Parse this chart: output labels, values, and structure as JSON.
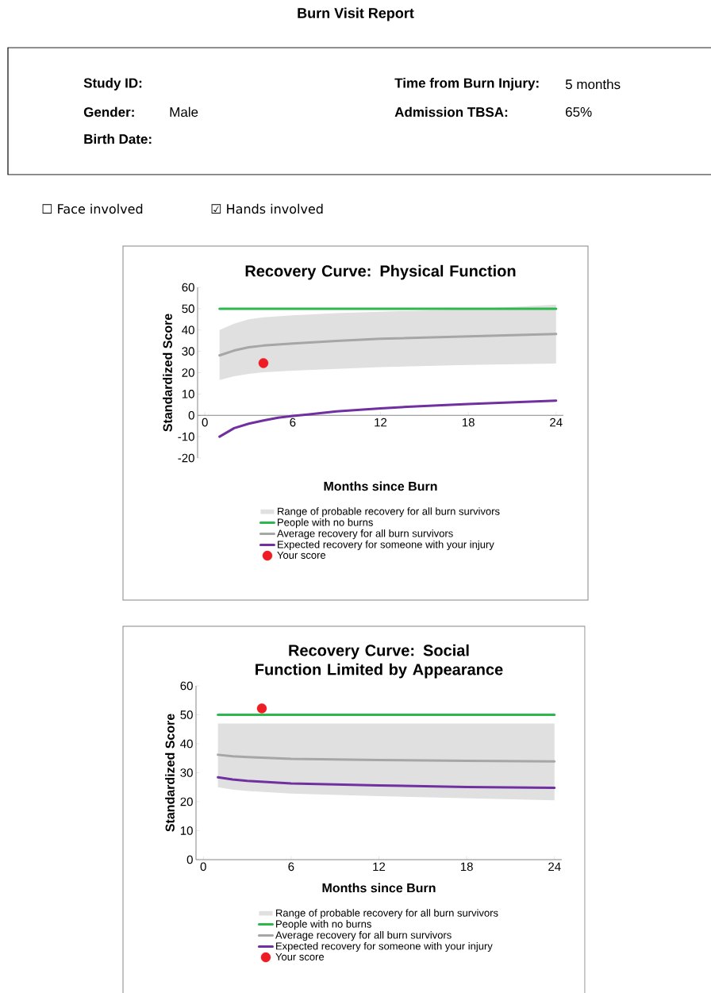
{
  "chart_data": [
    {
      "type": "other",
      "title": "Burn Visit Report",
      "annotations": [
        "Study ID:",
        "Gender:",
        "Male",
        "Birth Date:",
        "Time from Burn Injury:",
        "5 months",
        "Admission TBSA:",
        "65%",
        "☐ Face involved",
        "☑ Hands involved"
      ]
    },
    {
      "type": "line",
      "title": "Recovery Curve: Physical Function",
      "xlabel": "Months since Burn",
      "ylabel": "Standardized Score",
      "xlim": [
        -0.5,
        24.5
      ],
      "xticks": [
        0,
        6,
        12,
        18,
        24
      ],
      "ylim": [
        -20,
        60
      ],
      "yticks": [
        -20,
        -10,
        0,
        10,
        20,
        30,
        40,
        50,
        60
      ],
      "legend": "bottom",
      "annotations": [
        "Range of probable recovery for all burn survivors"
      ],
      "series": [
        {
          "name": "People with no burns",
          "type": "line",
          "color": "#2db84d",
          "x": [
            1,
            24
          ],
          "values": [
            50,
            50
          ]
        },
        {
          "name": "Average recovery for all burn survivors",
          "type": "line",
          "color": "#a6a6a6",
          "x": [
            1,
            2,
            3,
            4,
            6,
            9,
            12,
            18,
            24
          ],
          "values": [
            28.1,
            30.4,
            31.9,
            32.7,
            33.7,
            34.9,
            35.9,
            37,
            38.1
          ],
          "lower": [
            16.6,
            18.3,
            19.4,
            20.2,
            20.9,
            21.8,
            22.6,
            23.6,
            24.3
          ],
          "upper": [
            40,
            43,
            45,
            46,
            46.9,
            47.9,
            48.6,
            49.7,
            51.9
          ]
        },
        {
          "name": "Expected recovery for someone with your injury",
          "type": "line",
          "color": "#7030a0",
          "x": [
            1,
            2,
            3,
            4,
            5,
            6,
            7,
            9,
            12,
            15,
            18,
            21,
            24
          ],
          "values": [
            -10,
            -6,
            -3.9,
            -2.4,
            -1.1,
            -0.3,
            0.4,
            1.9,
            3.3,
            4.4,
            5.3,
            6.1,
            6.9
          ]
        },
        {
          "name": "Your score",
          "type": "scatter",
          "color": "#ee1c24",
          "x": [
            4
          ],
          "values": [
            24.5
          ]
        }
      ]
    },
    {
      "type": "line",
      "title": "Recovery Curve: Social Function Limited by Appearance",
      "xlabel": "Months since Burn",
      "ylabel": "Standardized Score",
      "xlim": [
        -0.5,
        24.5
      ],
      "xticks": [
        0,
        6,
        12,
        18,
        24
      ],
      "ylim": [
        0,
        60
      ],
      "yticks": [
        0,
        10,
        20,
        30,
        40,
        50,
        60
      ],
      "legend": "bottom",
      "annotations": [
        "Range of probable recovery for all burn survivors"
      ],
      "series": [
        {
          "name": "People with no burns",
          "type": "line",
          "color": "#2db84d",
          "x": [
            1,
            24
          ],
          "values": [
            50,
            50
          ]
        },
        {
          "name": "Average recovery for all burn survivors",
          "type": "line",
          "color": "#a6a6a6",
          "x": [
            1,
            2,
            3,
            6,
            12,
            18,
            24
          ],
          "values": [
            36.2,
            35.7,
            35.4,
            34.8,
            34.4,
            34.1,
            33.9
          ],
          "lower": [
            25,
            24.2,
            23.7,
            22.8,
            21.9,
            21.2,
            20.5
          ],
          "upper": [
            47,
            47,
            47,
            47,
            47,
            47,
            47
          ]
        },
        {
          "name": "Expected recovery for someone with your injury",
          "type": "line",
          "color": "#7030a0",
          "x": [
            1,
            2,
            3,
            6,
            12,
            18,
            24
          ],
          "values": [
            28.4,
            27.7,
            27.2,
            26.3,
            25.6,
            25.1,
            24.8
          ]
        },
        {
          "name": "Your score",
          "type": "scatter",
          "color": "#ee1c24",
          "x": [
            4
          ],
          "values": [
            52.2
          ]
        }
      ]
    }
  ]
}
